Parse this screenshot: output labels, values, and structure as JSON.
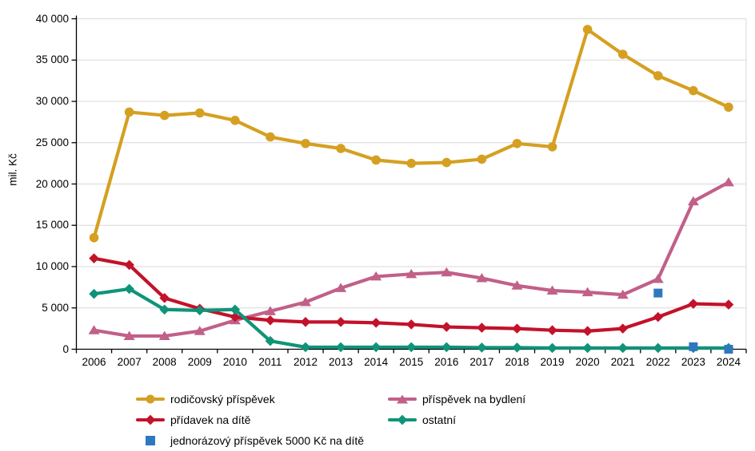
{
  "chart_data": {
    "type": "line",
    "title": "",
    "xlabel": "",
    "ylabel": "mil. Kč",
    "ylim": [
      0,
      40000
    ],
    "grid": "horizontal",
    "legend_position": "bottom",
    "colors": {
      "grid": "#d9d9d9",
      "axis": "#000000",
      "text": "#000000",
      "background": "#ffffff"
    },
    "yticks_values": [
      0,
      5000,
      10000,
      15000,
      20000,
      25000,
      30000,
      35000,
      40000
    ],
    "yticks_labels": [
      "0",
      "5 000",
      "10 000",
      "15 000",
      "20 000",
      "25 000",
      "30 000",
      "35 000",
      "40 000"
    ],
    "categories": [
      "2006",
      "2007",
      "2008",
      "2009",
      "2010",
      "2011",
      "2012",
      "2013",
      "2014",
      "2015",
      "2016",
      "2017",
      "2018",
      "2019",
      "2020",
      "2021",
      "2022",
      "2023",
      "2024"
    ],
    "series": [
      {
        "name": "rodičovský příspěvek",
        "color": "#d5a021",
        "marker": "circle",
        "line": true,
        "values": [
          13500,
          28700,
          28300,
          28600,
          27700,
          25700,
          24900,
          24300,
          22900,
          22500,
          22600,
          23000,
          24900,
          24500,
          38700,
          35700,
          33100,
          31300,
          29300
        ]
      },
      {
        "name": "příspěvek na bydlení",
        "color": "#c16089",
        "marker": "triangle",
        "line": true,
        "values": [
          2300,
          1600,
          1600,
          2200,
          3500,
          4600,
          5700,
          7400,
          8800,
          9100,
          9300,
          8600,
          7700,
          7100,
          6900,
          6600,
          8500,
          17900,
          20200
        ]
      },
      {
        "name": "přídavek na dítě",
        "color": "#c3122b",
        "marker": "diamond",
        "line": true,
        "values": [
          11000,
          10200,
          6200,
          4900,
          3900,
          3500,
          3300,
          3300,
          3200,
          3000,
          2700,
          2600,
          2500,
          2300,
          2200,
          2500,
          3900,
          5500,
          5400
        ]
      },
      {
        "name": "ostatní",
        "color": "#0f9478",
        "marker": "diamond",
        "line": true,
        "values": [
          6700,
          7300,
          4800,
          4700,
          4800,
          1000,
          250,
          250,
          250,
          250,
          250,
          200,
          200,
          150,
          150,
          150,
          150,
          150,
          150
        ]
      },
      {
        "name": "jednorázový příspěvek 5000 Kč na dítě",
        "color": "#2e78c0",
        "marker": "square",
        "line": false,
        "values": [
          null,
          null,
          null,
          null,
          null,
          null,
          null,
          null,
          null,
          null,
          null,
          null,
          null,
          null,
          null,
          null,
          6800,
          300,
          0
        ]
      }
    ]
  }
}
